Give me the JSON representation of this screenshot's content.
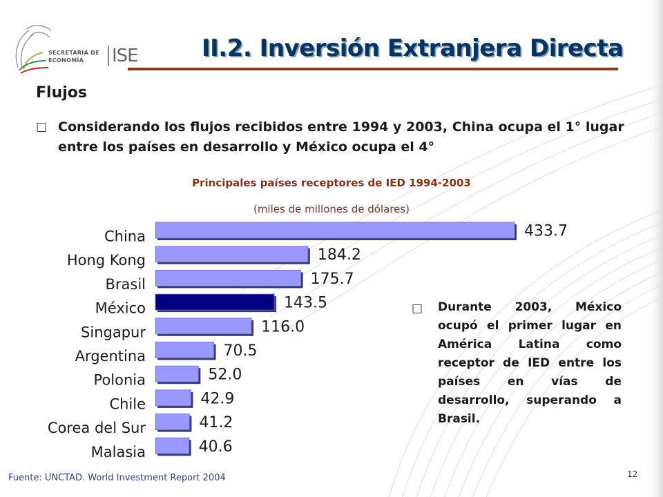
{
  "logo": {
    "line1": "SECRETARÍA DE",
    "line2": "ECONOMÍA",
    "acronym": "ISE"
  },
  "title": "II.2. Inversión Extranjera Directa",
  "section_heading": "Flujos",
  "bullet_icon": "checkbox-bullet-icon",
  "bullet1": "Considerando los flujos recibidos entre 1994 y 2003, China ocupa el 1° lugar entre los países en desarrollo y México ocupa el 4°",
  "chart_data": {
    "type": "bar",
    "orientation": "horizontal",
    "title": "Principales países receptores de IED 1994-2003",
    "subtitle": "(miles de millones de dólares)",
    "categories": [
      "China",
      "Hong Kong",
      "Brasil",
      "México",
      "Singapur",
      "Argentina",
      "Polonia",
      "Chile",
      "Corea del Sur",
      "Malasia"
    ],
    "values": [
      433.7,
      184.2,
      175.7,
      143.5,
      116.0,
      70.5,
      52.0,
      42.9,
      41.2,
      40.6
    ],
    "value_labels": [
      "433.7",
      "184.2",
      "175.7",
      "143.5",
      "116.0",
      "70.5",
      "52.0",
      "42.9",
      "41.2",
      "40.6"
    ],
    "highlight": "México",
    "colors": {
      "bar": "#9999ff",
      "highlight": "#000080",
      "bar_shadow": "#3a3a6a"
    },
    "grid": false,
    "legend": "none"
  },
  "bullet2": "Durante 2003, México ocupó el primer lugar en América Latina como receptor de IED entre los países en vías de desarrollo, superando a Brasil.",
  "source": "Fuente: UNCTAD. World Investment Report 2004",
  "page_number": "12",
  "colors": {
    "title": "#003366",
    "title_rule": "#8b3a1f",
    "chart_title": "#8b2f1a",
    "source": "#2d3e8c"
  }
}
